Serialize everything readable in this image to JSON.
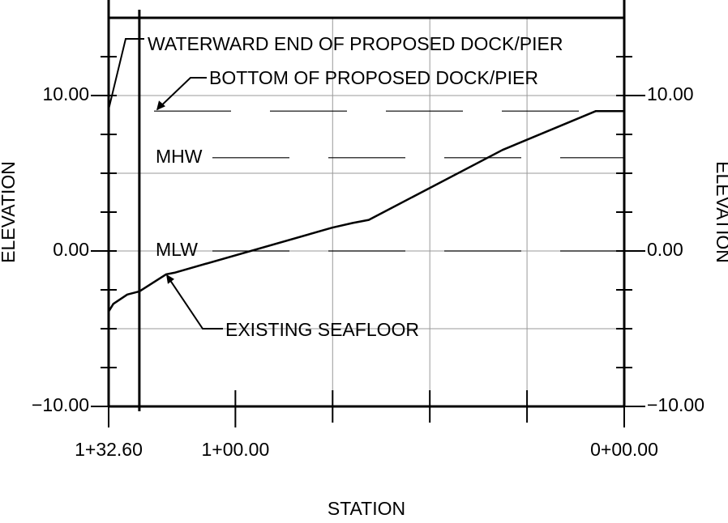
{
  "chart_data": {
    "type": "line",
    "x_label": "STATION",
    "y_label": "ELEVATION",
    "y2_label": "ELEVATION",
    "xlim": [
      132.6,
      0
    ],
    "xticks": [
      {
        "value": 132.6,
        "label": "1+32.60"
      },
      {
        "value": 100,
        "label": "1+00.00"
      },
      {
        "value": 0,
        "label": "0+00.00"
      }
    ],
    "xticks_minor": [
      75,
      50,
      25
    ],
    "ylim": [
      -10,
      15
    ],
    "yticks": [
      {
        "value": 10,
        "label": "10.00"
      },
      {
        "value": 0,
        "label": "0.00"
      },
      {
        "value": -10,
        "label": "−10.00"
      }
    ],
    "yticks_minor": [
      12.5,
      7.5,
      5,
      2.5,
      -2.5,
      -5,
      -7.5
    ],
    "grid": true,
    "series": [
      {
        "name": "EXISTING SEAFLOOR",
        "color": "#000000",
        "x": [
          132.6,
          131.4,
          127.8,
          124.7,
          117.8,
          115.7,
          75.1,
          69.8,
          65.7,
          31.3,
          7.3,
          0
        ],
        "values": [
          -3.9,
          -3.4,
          -2.8,
          -2.6,
          -1.5,
          -1.4,
          1.5,
          1.8,
          2.0,
          6.5,
          9.0,
          9.0
        ]
      }
    ],
    "reference_lines": [
      {
        "label": "BOTTOM OF PROPOSED DOCK/PIER",
        "y": 9
      },
      {
        "label": "MHW",
        "y": 6
      },
      {
        "label": "MLW",
        "y": 0
      }
    ],
    "vertical_lines": [
      {
        "label": "WATERWARD END OF PROPOSED DOCK/PIER",
        "x": 124.7
      }
    ]
  }
}
